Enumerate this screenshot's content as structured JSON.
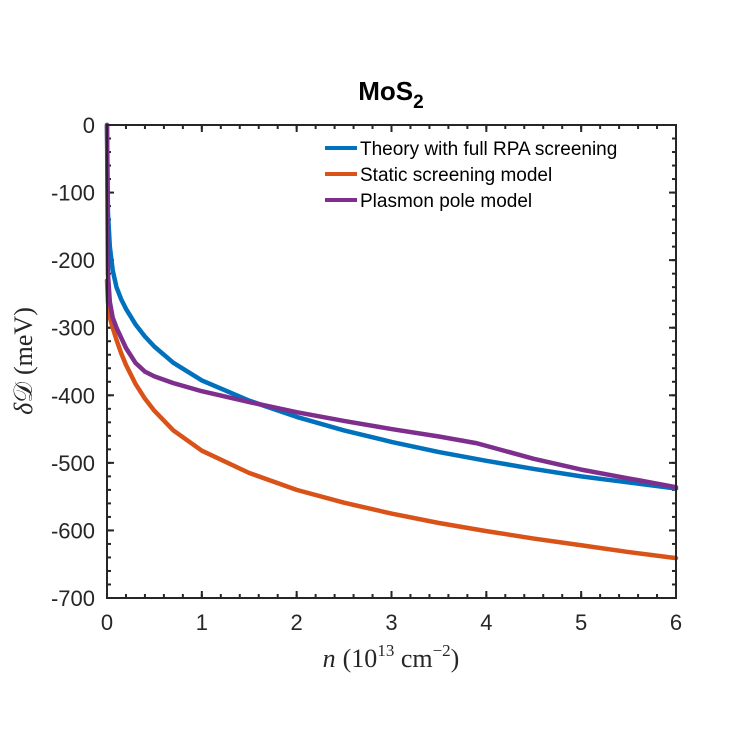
{
  "chart_data": {
    "type": "line",
    "title": "MoS",
    "title_subscript": "2",
    "xlabel": {
      "var": "n",
      "open": "(10",
      "exp": "13",
      "unit": " cm",
      "unit_exp": "−2",
      "close": ")"
    },
    "ylabel": {
      "var": "δ",
      "sym": "𝒟",
      "unit": "(meV)"
    },
    "xlim": [
      0,
      6
    ],
    "ylim": [
      -700,
      0
    ],
    "xticks": [
      0,
      1,
      2,
      3,
      4,
      5,
      6
    ],
    "xtick_labels": [
      "0",
      "1",
      "2",
      "3",
      "4",
      "5",
      "6"
    ],
    "yticks": [
      0,
      -100,
      -200,
      -300,
      -400,
      -500,
      -600,
      -700
    ],
    "ytick_labels": [
      "0",
      "-100",
      "-200",
      "-300",
      "-400",
      "-500",
      "-600",
      "-700"
    ],
    "grid": false,
    "legend_location": "top-right",
    "series": [
      {
        "name": "Theory with full RPA screening",
        "color": "#0072BD",
        "x": [
          0,
          0.01,
          0.03,
          0.06,
          0.1,
          0.15,
          0.2,
          0.3,
          0.4,
          0.5,
          0.7,
          1.0,
          1.5,
          2.0,
          2.5,
          3.0,
          3.5,
          4.0,
          4.5,
          5.0,
          5.5,
          6.0
        ],
        "y": [
          0,
          -130,
          -180,
          -215,
          -240,
          -258,
          -272,
          -295,
          -313,
          -328,
          -352,
          -378,
          -408,
          -432,
          -452,
          -469,
          -484,
          -497,
          -509,
          -520,
          -529,
          -538
        ]
      },
      {
        "name": "Static screening model",
        "color": "#D95319",
        "x": [
          0,
          0.01,
          0.03,
          0.06,
          0.1,
          0.15,
          0.2,
          0.3,
          0.4,
          0.5,
          0.7,
          1.0,
          1.5,
          2.0,
          2.5,
          3.0,
          3.5,
          4.0,
          4.5,
          5.0,
          5.5,
          6.0
        ],
        "y": [
          -230,
          -262,
          -285,
          -300,
          -318,
          -338,
          -355,
          -383,
          -405,
          -423,
          -452,
          -482,
          -515,
          -540,
          -559,
          -575,
          -589,
          -601,
          -612,
          -622,
          -632,
          -641
        ]
      },
      {
        "name": "Plasmon pole model",
        "color": "#7E2F8E",
        "x": [
          0,
          0.01,
          0.03,
          0.06,
          0.1,
          0.15,
          0.2,
          0.3,
          0.4,
          0.5,
          0.7,
          1.0,
          1.5,
          2.0,
          2.5,
          3.0,
          3.5,
          3.9,
          4.5,
          5.0,
          5.5,
          6.0
        ],
        "y": [
          0,
          -220,
          -262,
          -285,
          -300,
          -315,
          -330,
          -352,
          -365,
          -372,
          -382,
          -394,
          -410,
          -425,
          -438,
          -450,
          -461,
          -471,
          -494,
          -510,
          -523,
          -536
        ]
      }
    ]
  }
}
